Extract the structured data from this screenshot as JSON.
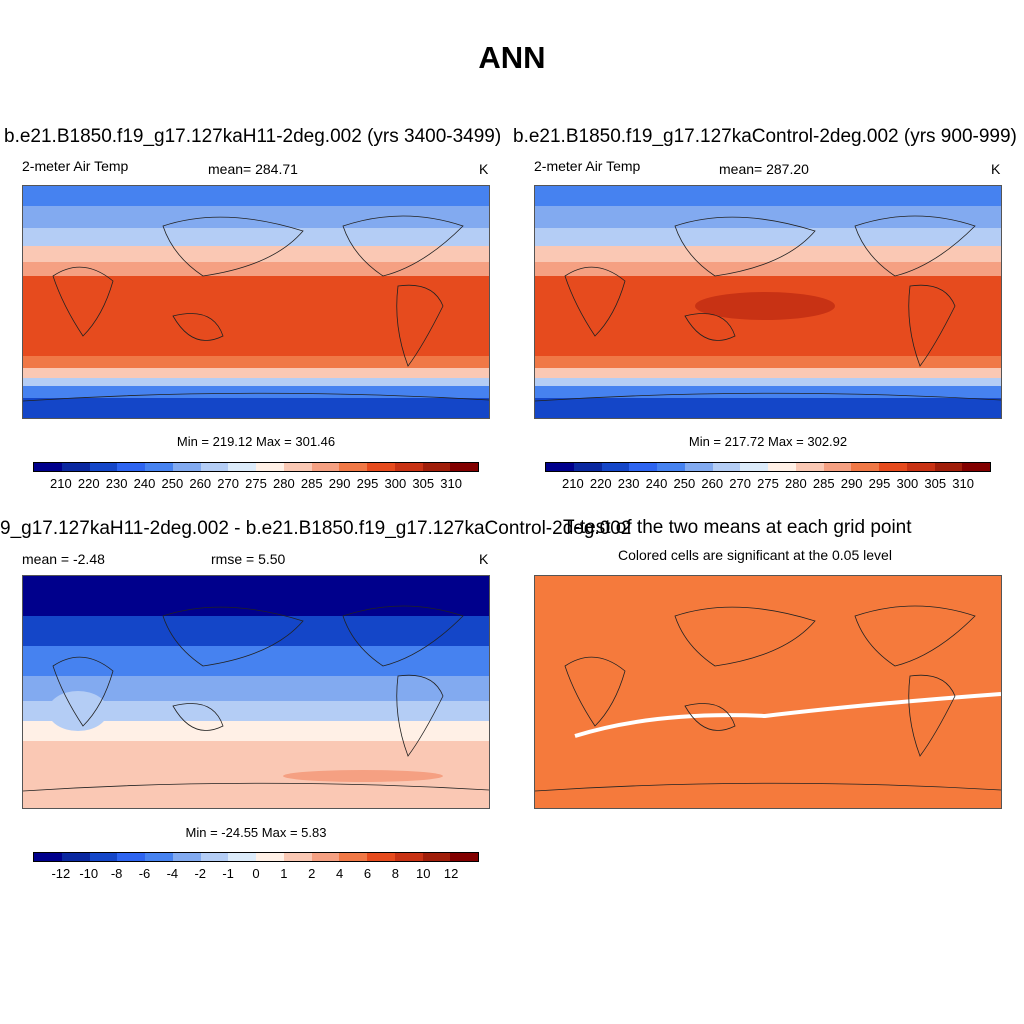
{
  "page_title": "ANN",
  "panels": {
    "top_left": {
      "run_title": "b.e21.B1850.f19_g17.127kaH11-2deg.002 (yrs 3400-3499)",
      "variable": "2-meter Air Temp",
      "mean_text": "mean= 284.71",
      "units": "K",
      "minmax_text": "Min = 219.12 Max = 301.46"
    },
    "top_right": {
      "run_title": "b.e21.B1850.f19_g17.127kaControl-2deg.002 (yrs 900-999)",
      "variable": "2-meter Air Temp",
      "mean_text": "mean= 287.20",
      "units": "K",
      "minmax_text": "Min = 217.72 Max = 302.92"
    },
    "bottom_left": {
      "diff_title": "9_g17.127kaH11-2deg.002 - b.e21.B1850.f19_g17.127kaControl-2deg.002",
      "mean_text": "mean =  -2.48",
      "rmse_text": "rmse =   5.50",
      "units": "K",
      "minmax_text": "Min = -24.55 Max =   5.83"
    },
    "bottom_right": {
      "title": "T-test of the two means at each grid point",
      "subtitle": "Colored cells are significant at the 0.05 level"
    }
  },
  "colorbars": {
    "temp_labels": [
      "210",
      "220",
      "230",
      "240",
      "250",
      "260",
      "270",
      "275",
      "280",
      "285",
      "290",
      "295",
      "300",
      "305",
      "310"
    ],
    "diff_labels": [
      "-12",
      "-10",
      "-8",
      "-6",
      "-4",
      "-2",
      "-1",
      "0",
      "1",
      "2",
      "4",
      "6",
      "8",
      "10",
      "12"
    ],
    "colors": [
      "#00008c",
      "#0a28a0",
      "#1446c8",
      "#2d64f0",
      "#4682f0",
      "#82aaf0",
      "#b4cdf5",
      "#dcebfa",
      "#fff0e6",
      "#fac8b4",
      "#f5a082",
      "#f07846",
      "#e64b1e",
      "#c83214",
      "#a01e0a",
      "#820000"
    ],
    "ttest_color": "#f57a3c"
  }
}
